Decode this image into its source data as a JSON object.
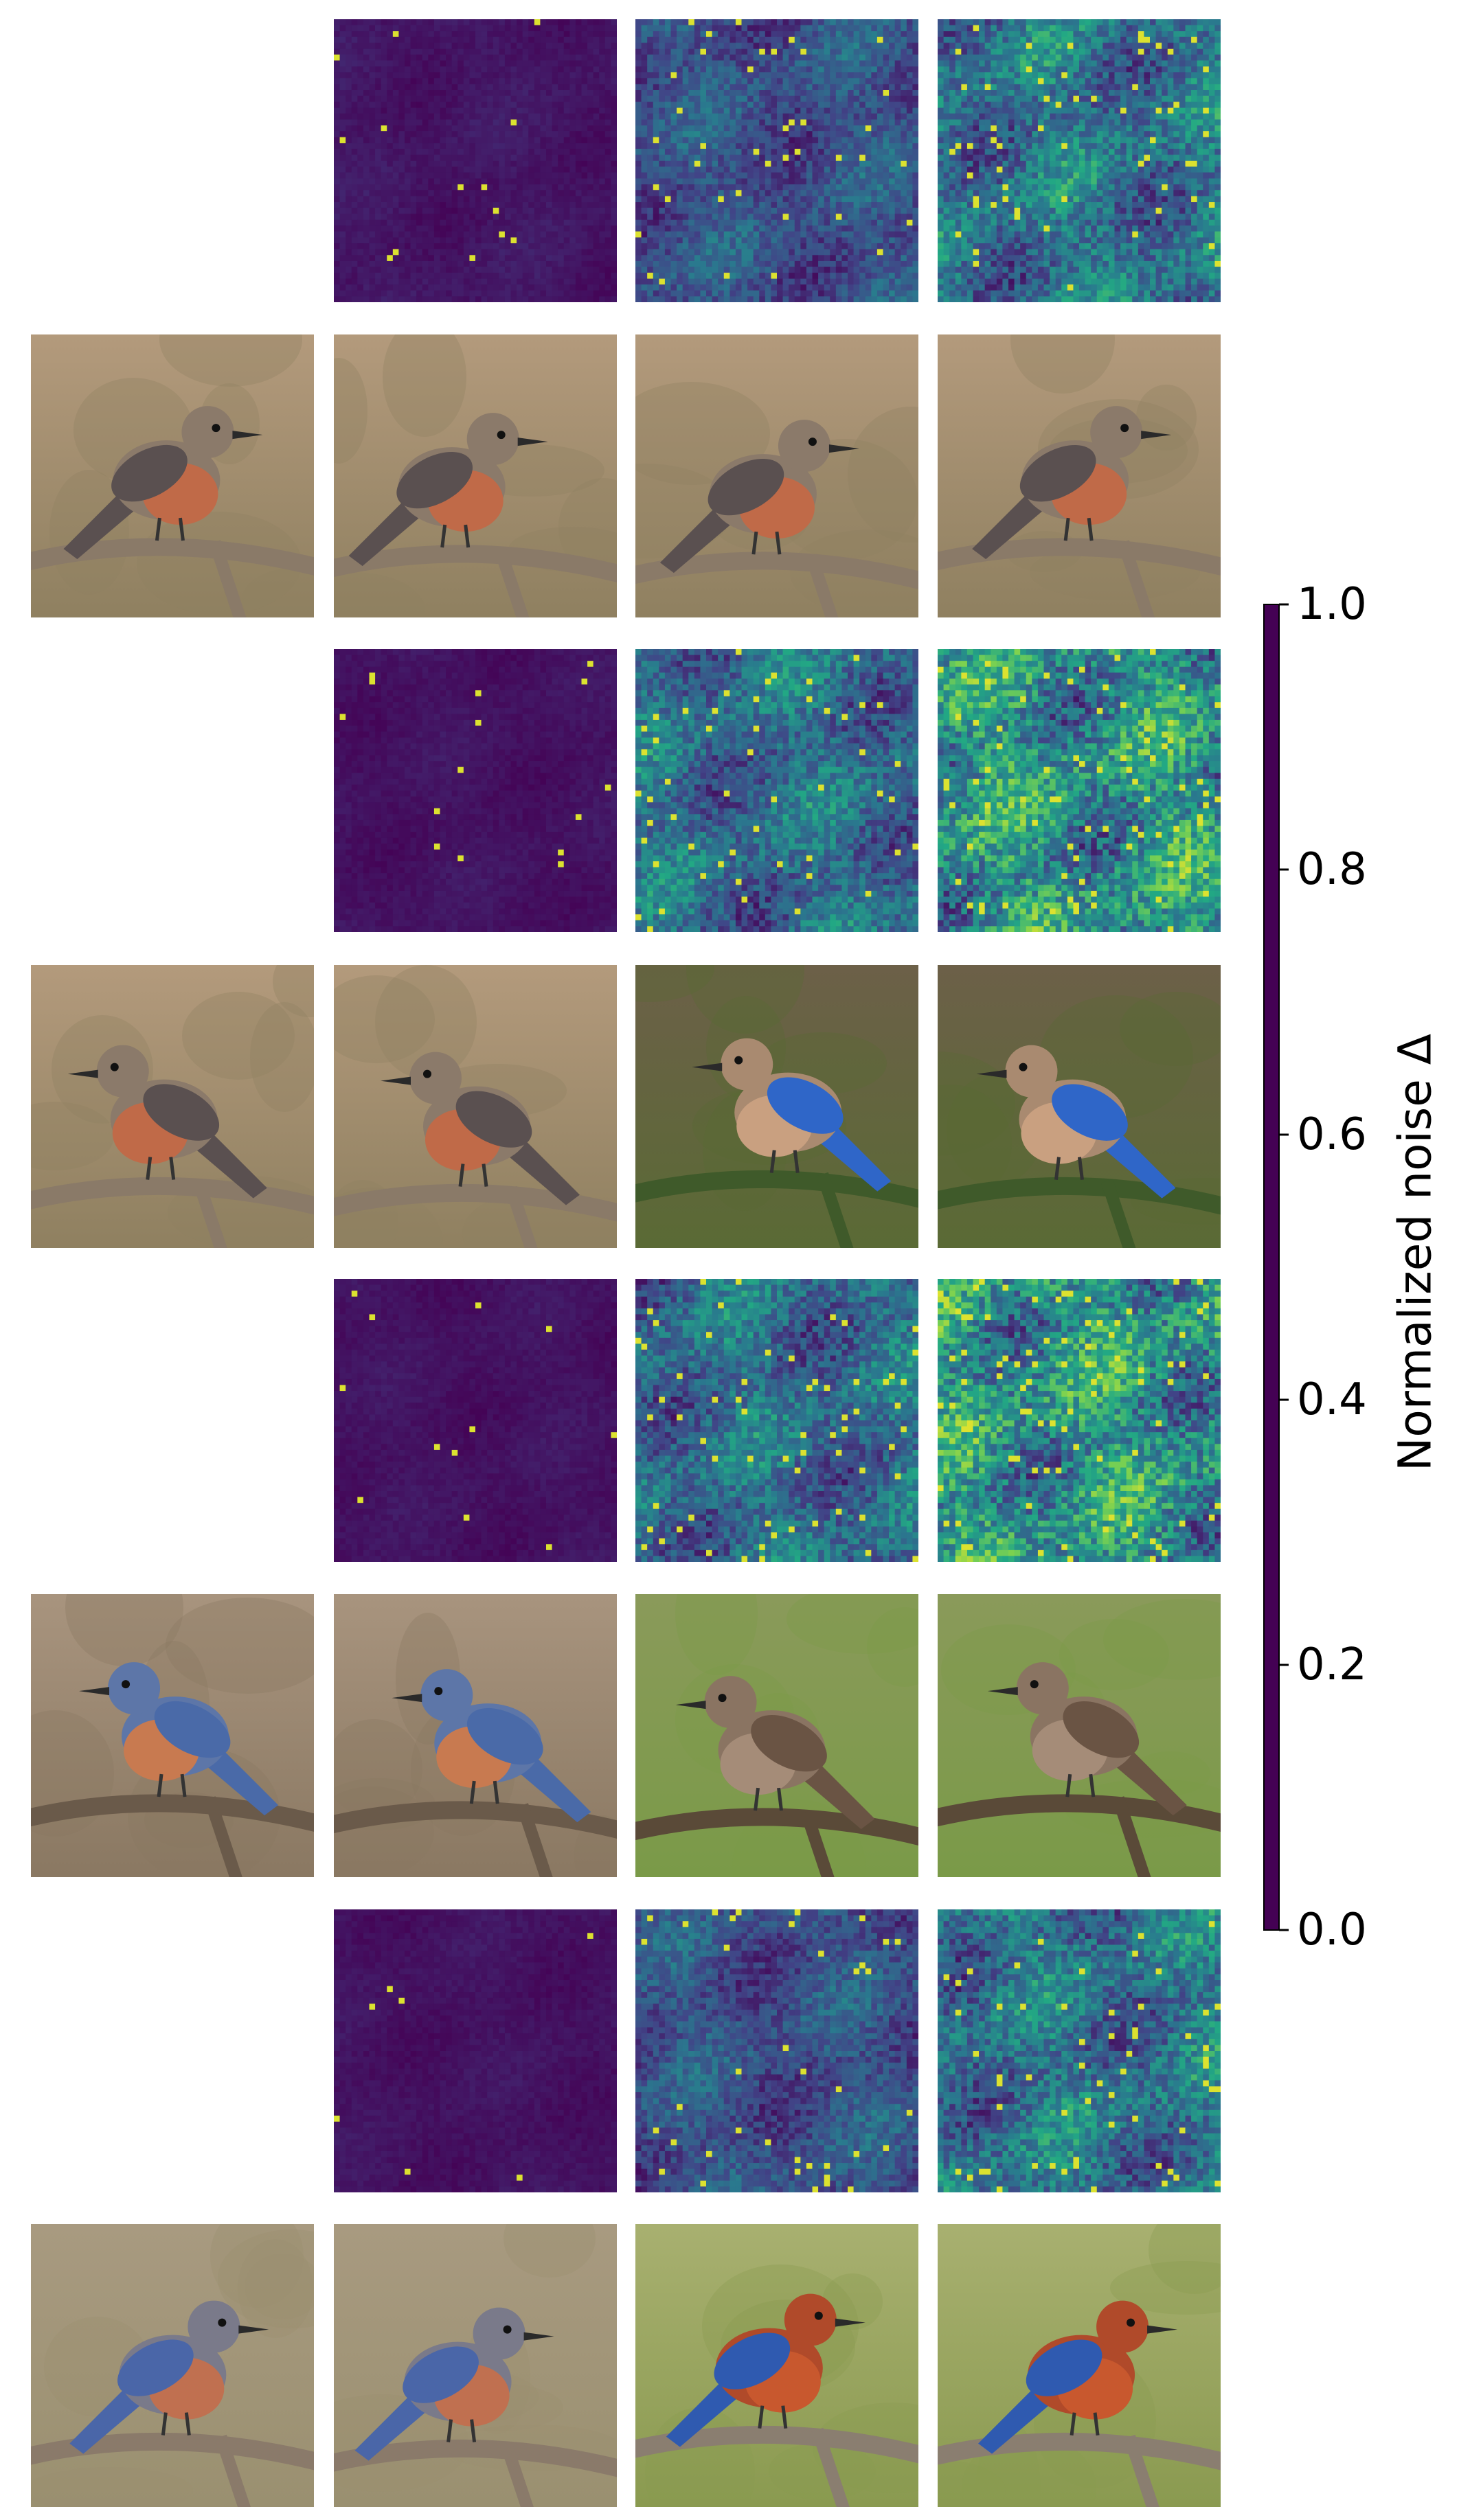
{
  "figure": {
    "colorbar": {
      "label": "Normalized noise Δ",
      "ticks": [
        "0.0",
        "0.2",
        "0.4",
        "0.6",
        "0.8",
        "1.0"
      ],
      "range": [
        0,
        1
      ],
      "colormap": "viridis",
      "colors": [
        "#440154",
        "#414487",
        "#2a788e",
        "#22a884",
        "#7ad151",
        "#fde725"
      ]
    },
    "grid": {
      "rows": 8,
      "cols": 4,
      "row_types": [
        "noise_map",
        "image",
        "noise_map",
        "image",
        "noise_map",
        "image",
        "noise_map",
        "image"
      ],
      "noise_map_mean_levels": [
        [
          null,
          0.06,
          0.25,
          0.38
        ],
        [
          null,
          0.05,
          0.35,
          0.5
        ],
        [
          null,
          0.05,
          0.35,
          0.5
        ],
        [
          null,
          0.05,
          0.25,
          0.38
        ]
      ],
      "image_icons": [
        [
          "bird-photo-icon",
          "bird-photo-icon",
          "bird-photo-icon",
          "bird-photo-icon"
        ],
        [
          "bird-photo-icon",
          "bird-photo-icon",
          "bluebird-on-pine-icon",
          "bluebird-on-pine-icon"
        ],
        [
          "bluebird-photo-icon",
          "bluebird-photo-icon",
          "sparrow-on-post-icon",
          "sparrow-on-post-icon"
        ],
        [
          "bird-on-branch-icon",
          "bird-on-branch-icon",
          "robin-on-branch-icon",
          "robin-on-branch-icon"
        ]
      ]
    }
  }
}
